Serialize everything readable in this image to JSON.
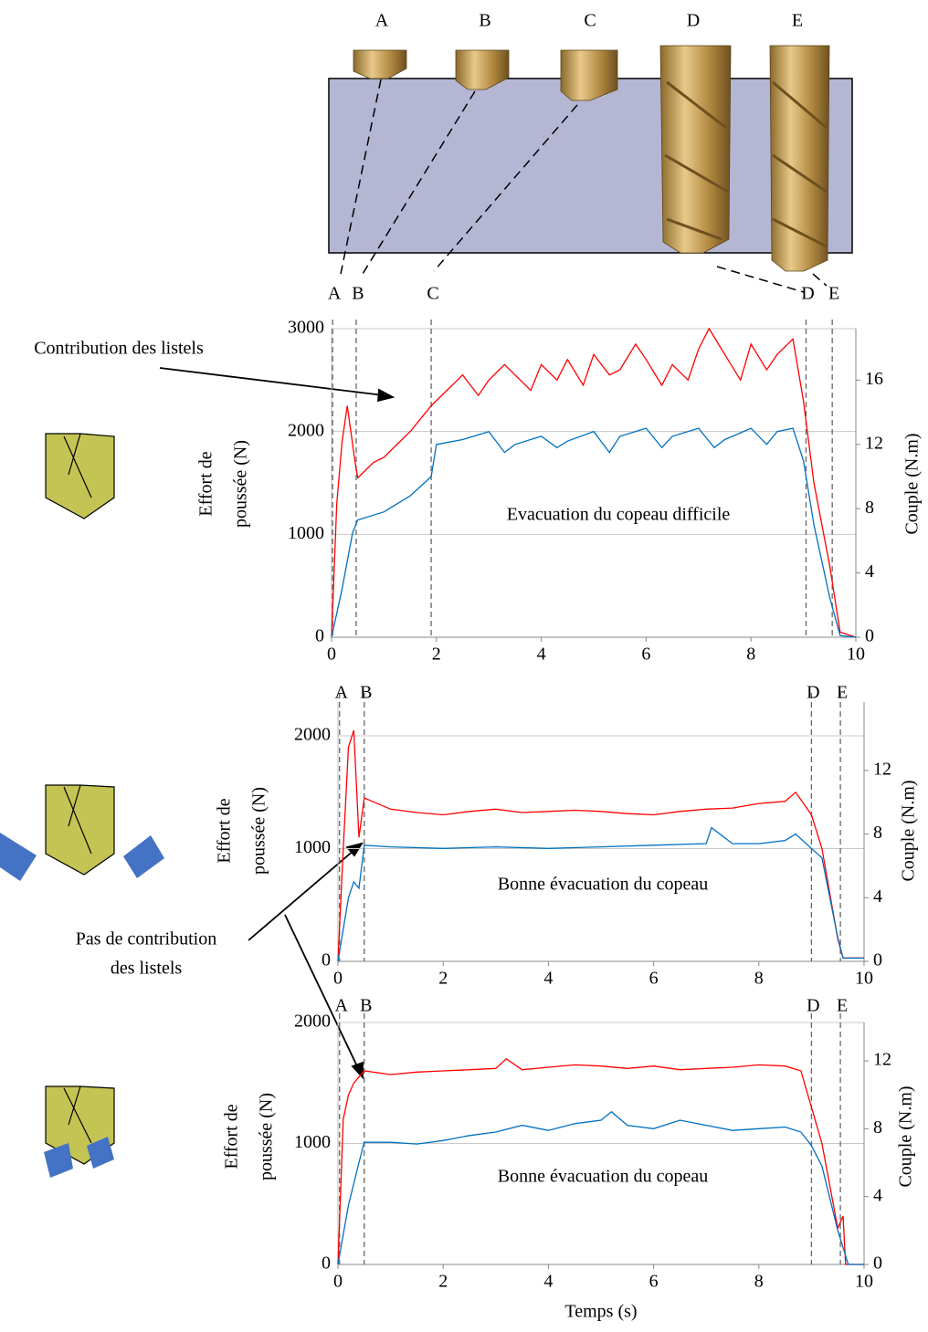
{
  "drill_diagram": {
    "labels": [
      "A",
      "B",
      "C",
      "D",
      "E"
    ]
  },
  "annotations": {
    "contribution": "Contribution des listels",
    "no_contribution": [
      "Pas de contribution",
      "des listels"
    ]
  },
  "chart_data": [
    {
      "type": "line",
      "annotation": "Evacuation du copeau difficile",
      "ylabel": [
        "Effort de",
        "poussée (N)"
      ],
      "y2label": "Couple (N.m)",
      "xlim": [
        0,
        10
      ],
      "xticks": [
        0,
        2,
        4,
        6,
        8,
        10
      ],
      "ylim": [
        0,
        3000
      ],
      "yticks": [
        0,
        1000,
        2000,
        3000
      ],
      "y2lim": [
        0,
        19.2
      ],
      "y2ticks": [
        0,
        4,
        8,
        12,
        16
      ],
      "grid": true,
      "markers": [
        {
          "label": "A",
          "x": 0.02
        },
        {
          "label": "B",
          "x": 0.47
        },
        {
          "label": "C",
          "x": 1.9
        },
        {
          "label": "D",
          "x": 9.05
        },
        {
          "label": "E",
          "x": 9.55
        }
      ],
      "series": [
        {
          "color": "#ff0000",
          "axis": "y",
          "x": [
            0,
            0.1,
            0.2,
            0.3,
            0.45,
            0.5,
            0.8,
            1,
            1.3,
            1.5,
            1.9,
            2.2,
            2.5,
            2.8,
            3,
            3.3,
            3.5,
            3.8,
            4,
            4.3,
            4.5,
            4.8,
            5,
            5.3,
            5.5,
            5.8,
            6,
            6.3,
            6.5,
            6.8,
            7,
            7.2,
            7.5,
            7.8,
            8,
            8.3,
            8.5,
            8.8,
            9.0,
            9.2,
            9.5,
            9.7,
            10
          ],
          "values": [
            0,
            1300,
            1900,
            2250,
            1700,
            1550,
            1700,
            1750,
            1900,
            2000,
            2250,
            2400,
            2550,
            2350,
            2500,
            2650,
            2550,
            2400,
            2650,
            2500,
            2700,
            2450,
            2750,
            2550,
            2600,
            2850,
            2700,
            2450,
            2650,
            2500,
            2800,
            3000,
            2750,
            2500,
            2850,
            2600,
            2750,
            2900,
            2300,
            1500,
            700,
            50,
            0
          ]
        },
        {
          "color": "#0070c0",
          "axis": "y2",
          "x": [
            0,
            0.2,
            0.4,
            0.5,
            1,
            1.5,
            1.9,
            2,
            2.5,
            3,
            3.3,
            3.5,
            4,
            4.3,
            4.5,
            5,
            5.3,
            5.5,
            6,
            6.3,
            6.5,
            7,
            7.3,
            7.5,
            8,
            8.3,
            8.5,
            8.8,
            9,
            9.2,
            9.5,
            9.7,
            10
          ],
          "values": [
            0,
            3,
            6.5,
            7.3,
            7.8,
            8.8,
            10,
            12,
            12.3,
            12.8,
            11.5,
            12,
            12.5,
            11.8,
            12.2,
            12.8,
            11.5,
            12.5,
            13,
            11.8,
            12.5,
            13,
            11.8,
            12.3,
            13,
            12,
            12.8,
            13,
            11,
            7,
            2.5,
            0.1,
            0
          ]
        }
      ]
    },
    {
      "type": "line",
      "annotation": "Bonne évacuation du copeau",
      "ylabel": [
        "Effort de",
        "poussée (N)"
      ],
      "y2label": "Couple (N.m)",
      "xlim": [
        0,
        10
      ],
      "xticks": [
        0,
        2,
        4,
        6,
        8,
        10
      ],
      "ylim": [
        0,
        2300
      ],
      "yticks": [
        0,
        1000,
        2000
      ],
      "y2lim": [
        0,
        16.3
      ],
      "y2ticks": [
        0,
        4,
        8,
        12
      ],
      "grid": true,
      "markers": [
        {
          "label": "A",
          "x": 0.03
        },
        {
          "label": "B",
          "x": 0.5
        },
        {
          "label": "D",
          "x": 9.0
        },
        {
          "label": "E",
          "x": 9.55
        }
      ],
      "series": [
        {
          "color": "#ff0000",
          "axis": "y",
          "x": [
            0,
            0.1,
            0.2,
            0.3,
            0.4,
            0.5,
            1,
            1.5,
            2,
            2.5,
            3,
            3.5,
            4,
            4.5,
            5,
            5.5,
            6,
            6.5,
            7,
            7.5,
            8,
            8.5,
            8.7,
            9,
            9.2,
            9.5,
            9.6,
            10
          ],
          "values": [
            0,
            1000,
            1900,
            2050,
            1100,
            1450,
            1350,
            1320,
            1300,
            1330,
            1350,
            1320,
            1330,
            1340,
            1330,
            1310,
            1300,
            1330,
            1350,
            1360,
            1400,
            1420,
            1500,
            1300,
            1000,
            200,
            30,
            30
          ]
        },
        {
          "color": "#0070c0",
          "axis": "y2",
          "x": [
            0,
            0.2,
            0.3,
            0.4,
            0.5,
            1,
            2,
            3,
            4,
            5,
            6,
            7,
            7.1,
            7.5,
            8,
            8.5,
            8.7,
            9,
            9.2,
            9.5,
            9.6,
            10
          ],
          "values": [
            0,
            4,
            5,
            4.6,
            7.3,
            7.2,
            7.1,
            7.2,
            7.1,
            7.2,
            7.3,
            7.4,
            8.4,
            7.4,
            7.4,
            7.6,
            8,
            7.1,
            6.5,
            1.5,
            0.2,
            0.2
          ]
        }
      ]
    },
    {
      "type": "line",
      "annotation": "Bonne évacuation du copeau",
      "ylabel": [
        "Effort de",
        "poussée (N)"
      ],
      "y2label": "Couple (N.m)",
      "xlabel": "Temps (s)",
      "xlim": [
        0,
        10
      ],
      "xticks": [
        0,
        2,
        4,
        6,
        8,
        10
      ],
      "ylim": [
        0,
        2000
      ],
      "yticks": [
        0,
        1000,
        2000
      ],
      "y2lim": [
        0,
        14.26
      ],
      "y2ticks": [
        0,
        4,
        8,
        12
      ],
      "grid": true,
      "markers": [
        {
          "label": "A",
          "x": 0.03
        },
        {
          "label": "B",
          "x": 0.5
        },
        {
          "label": "D",
          "x": 9.0
        },
        {
          "label": "E",
          "x": 9.55
        }
      ],
      "series": [
        {
          "color": "#ff0000",
          "axis": "y",
          "x": [
            0,
            0.1,
            0.2,
            0.3,
            0.5,
            1,
            1.5,
            2,
            2.5,
            3,
            3.2,
            3.5,
            4,
            4.5,
            5,
            5.5,
            6,
            6.5,
            7,
            7.5,
            8,
            8.5,
            8.8,
            9,
            9.2,
            9.5,
            9.6,
            9.65,
            9.7,
            10
          ],
          "values": [
            0,
            1200,
            1400,
            1500,
            1600,
            1570,
            1590,
            1600,
            1610,
            1620,
            1700,
            1610,
            1630,
            1650,
            1640,
            1620,
            1640,
            1610,
            1620,
            1630,
            1650,
            1640,
            1600,
            1300,
            1000,
            300,
            400,
            0,
            0,
            0
          ]
        },
        {
          "color": "#0070c0",
          "axis": "y2",
          "x": [
            0,
            0.2,
            0.4,
            0.5,
            1,
            1.5,
            2,
            2.5,
            3,
            3.5,
            4,
            4.5,
            5,
            5.2,
            5.5,
            6,
            6.5,
            7,
            7.5,
            8,
            8.5,
            8.8,
            9,
            9.2,
            9.5,
            9.7,
            10
          ],
          "values": [
            0,
            3.5,
            6,
            7.2,
            7.2,
            7.1,
            7.3,
            7.6,
            7.8,
            8.2,
            7.9,
            8.3,
            8.5,
            9,
            8.2,
            8,
            8.5,
            8.2,
            7.9,
            8,
            8.1,
            7.8,
            7,
            5.8,
            2,
            0,
            0
          ]
        }
      ]
    }
  ]
}
